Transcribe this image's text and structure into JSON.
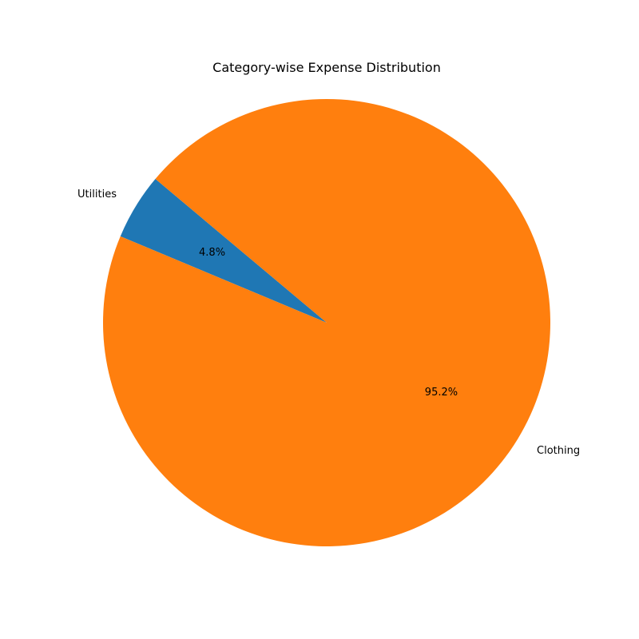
{
  "chart_data": {
    "type": "pie",
    "title": "Category-wise Expense Distribution",
    "categories": [
      "Utilities",
      "Clothing"
    ],
    "values": [
      4.8,
      95.2
    ],
    "percent_labels": [
      "4.8%",
      "95.2%"
    ],
    "colors": [
      "#1f77b4",
      "#ff7f0e"
    ],
    "start_angle_deg": 140,
    "direction": "counterclockwise",
    "legend": "none"
  }
}
